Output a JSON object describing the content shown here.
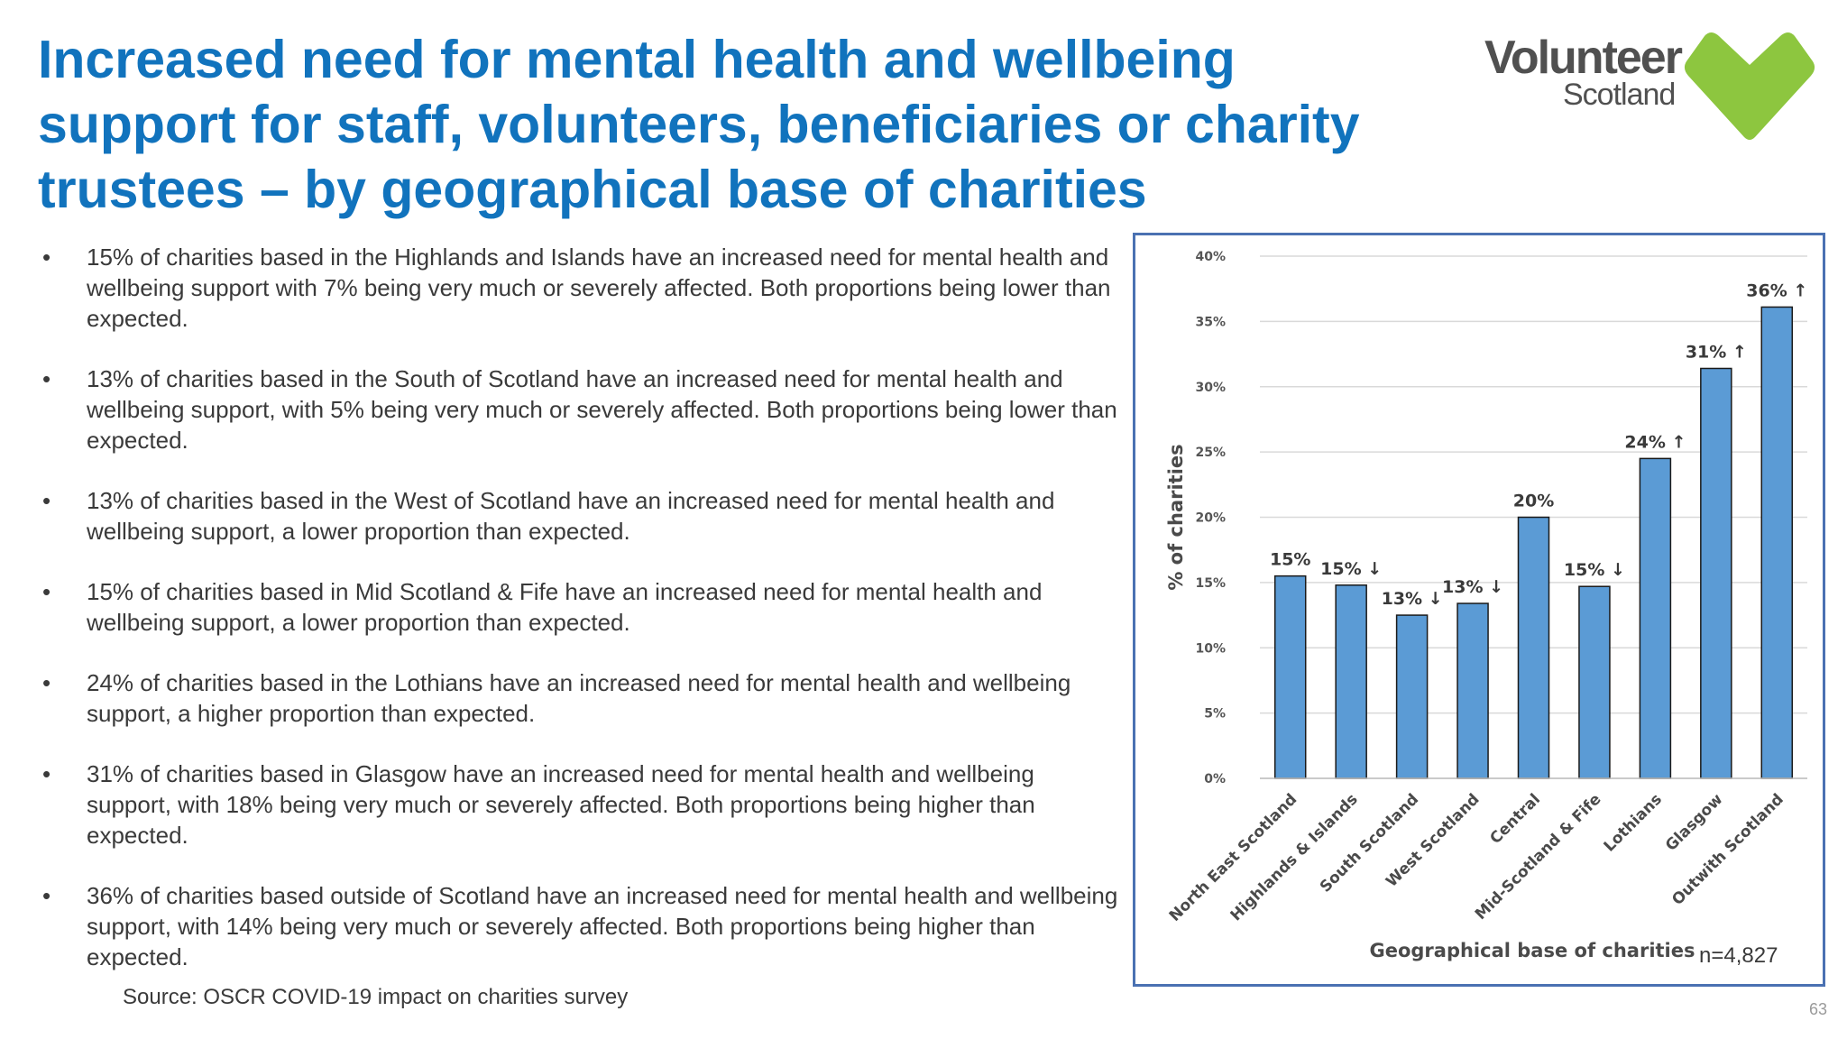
{
  "title": "Increased need for mental health and wellbeing support for staff, volunteers, beneficiaries or charity trustees – by geographical base of charities",
  "logo": {
    "word": "Volunteer",
    "sub": "Scotland",
    "color_text": "#505050",
    "color_heart": "#8dc63f"
  },
  "bullets": [
    "15% of charities based in the Highlands and Islands have an increased need for mental health and wellbeing support with 7% being very much or severely affected. Both proportions being lower than expected.",
    "13% of charities based in the South of Scotland have an increased need for mental health and wellbeing support, with 5% being very much or severely affected. Both proportions being lower than expected.",
    "13% of charities based in the West of Scotland have an increased need for mental health and wellbeing support, a lower proportion than expected.",
    "15% of charities based in Mid Scotland & Fife have an increased need for mental health and wellbeing support, a lower proportion than expected.",
    "24% of charities based in the Lothians have an increased need for mental health and wellbeing support, a higher proportion than expected.",
    "31% of charities based in Glasgow have an increased need for mental health and wellbeing support, with 18% being very much or severely affected. Both proportions being higher than expected.",
    "36% of charities based outside of Scotland have an increased need for mental health and wellbeing support, with 14% being very much or severely affected. Both proportions being higher than expected."
  ],
  "bullet_marker": "•",
  "source": "Source: OSCR COVID-19 impact on charities survey",
  "n_label": "n=4,827",
  "page_number": "63",
  "colors": {
    "title": "#1173bd",
    "bar": "#5b9bd5",
    "frame": "#4a71b2"
  },
  "chart_data": {
    "type": "bar",
    "categories": [
      "North East Scotland",
      "Highlands & Islands",
      "South Scotland",
      "West Scotland",
      "Central",
      "Mid-Scotland & Fife",
      "Lothians",
      "Glasgow",
      "Outwith Scotland"
    ],
    "values": [
      15.5,
      14.8,
      12.5,
      13.4,
      20.0,
      14.7,
      24.5,
      31.4,
      36.1
    ],
    "data_labels": [
      "15%",
      "15% ↓",
      "13% ↓",
      "13% ↓",
      "20%",
      "15% ↓",
      "24% ↑",
      "31% ↑",
      "36% ↑"
    ],
    "ylabel": "% of charities",
    "xlabel": "Geographical base of charities",
    "ylim": [
      0,
      40
    ],
    "yticks": [
      0,
      5,
      10,
      15,
      20,
      25,
      30,
      35,
      40
    ],
    "ytick_labels": [
      "0%",
      "5%",
      "10%",
      "15%",
      "20%",
      "25%",
      "30%",
      "35%",
      "40%"
    ],
    "grid": true,
    "legend": false
  }
}
